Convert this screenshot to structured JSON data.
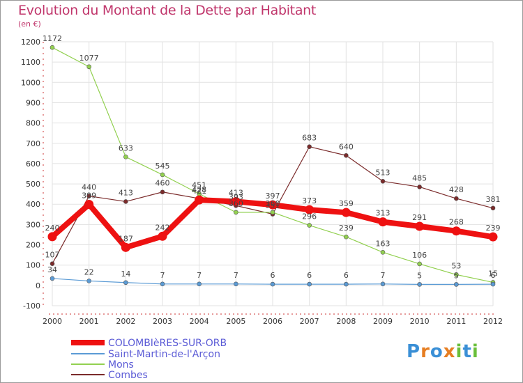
{
  "chart_data": {
    "type": "line",
    "title": "Evolution du Montant de la Dette par Habitant",
    "subtitle": "(en €)",
    "x": [
      "2000",
      "2001",
      "2002",
      "2003",
      "2004",
      "2005",
      "2006",
      "2007",
      "2008",
      "2009",
      "2010",
      "2011",
      "2012"
    ],
    "ylim": [
      -100,
      1200
    ],
    "yticks": [
      -100,
      0,
      100,
      200,
      300,
      400,
      500,
      600,
      700,
      800,
      900,
      1000,
      1100,
      1200
    ],
    "grid": true,
    "legend_position": "bottom-left",
    "series": [
      {
        "name": "COLOMBIèRES-SUR-ORB",
        "color": "#ee1111",
        "values": [
          240,
          399,
          187,
          242,
          421,
          413,
          397,
          373,
          359,
          313,
          291,
          268,
          239
        ]
      },
      {
        "name": "Saint-Martin-de-l'Arçon",
        "color": "#5b9bd5",
        "values": [
          34,
          22,
          14,
          7,
          7,
          7,
          6,
          6,
          6,
          7,
          5,
          5,
          6
        ]
      },
      {
        "name": "Mons",
        "color": "#92d050",
        "values": [
          1172,
          1077,
          633,
          545,
          451,
          360,
          360,
          296,
          239,
          163,
          106,
          53,
          15
        ]
      },
      {
        "name": "Combes",
        "color": "#7b2b2b",
        "values": [
          107,
          440,
          413,
          460,
          428,
          393,
          351,
          683,
          640,
          513,
          485,
          428,
          381
        ]
      }
    ],
    "data_labels": [
      {
        "series": 0,
        "labels": [
          "240",
          "399",
          "187",
          "242",
          "421",
          "413",
          "397",
          "373",
          "359",
          "313",
          "291",
          "268",
          "239"
        ]
      },
      {
        "series": 1,
        "labels": [
          "34",
          "22",
          "14",
          "7",
          "7",
          "7",
          "6",
          "6",
          "6",
          "7",
          "5",
          "5",
          "6"
        ]
      },
      {
        "series": 2,
        "labels": [
          "1172",
          "1077",
          "633",
          "545",
          "451",
          "360",
          "360",
          "296",
          "239",
          "163",
          "106",
          "53",
          "15"
        ]
      },
      {
        "series": 3,
        "labels": [
          "107",
          "440",
          "413",
          "460",
          "428",
          "393",
          "351",
          "683",
          "640",
          "513",
          "485",
          "428",
          "381"
        ]
      }
    ]
  },
  "logo": {
    "letters": [
      "P",
      "r",
      "o",
      "x",
      "i",
      "t",
      "i"
    ],
    "colors": [
      "#3a8fd6",
      "#e67e22",
      "#3a8fd6",
      "#e67e22",
      "#6abf3a",
      "#3a8fd6",
      "#6abf3a"
    ]
  }
}
